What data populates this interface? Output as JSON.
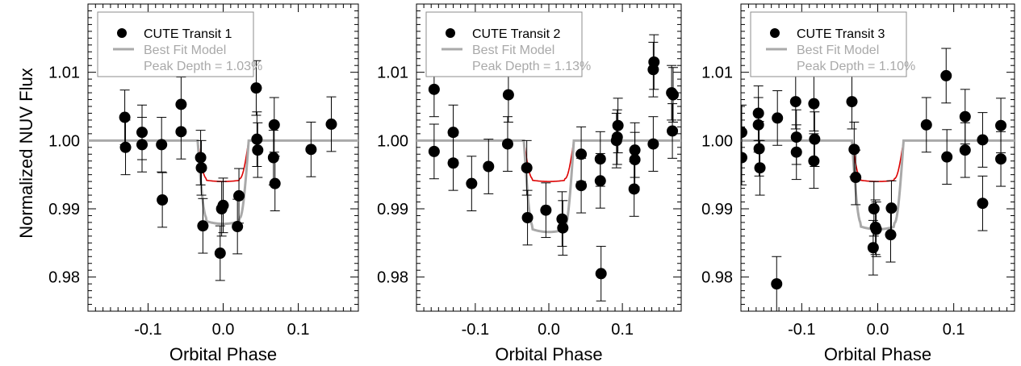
{
  "figure": {
    "ylabel": "Normalized NUV Flux",
    "xlabel": "Orbital Phase"
  },
  "colors": {
    "data": "#000000",
    "model": "#a9a9a9",
    "limb_model": "#dd0000",
    "legend_border": "#8c8c8c"
  },
  "chart_data": [
    {
      "type": "scatter",
      "legend": [
        "CUTE Transit 1",
        "Best Fit Model",
        "Peak Depth = 1.03%"
      ],
      "xlabel": "Orbital Phase",
      "ylabel": "Normalized NUV Flux",
      "xlim": [
        -0.18,
        0.18
      ],
      "ylim": [
        0.975,
        1.02
      ],
      "xticks": [
        "-0.1",
        "0.0",
        "0.1"
      ],
      "yticks": [
        "1.01",
        "1.00",
        "0.99",
        "0.98"
      ],
      "model_depth": 0.0122,
      "limb_depth": 0.006,
      "points": [
        {
          "x": -0.131,
          "y": 1.0034,
          "err": 0.004
        },
        {
          "x": -0.13,
          "y": 0.999,
          "err": 0.004
        },
        {
          "x": -0.108,
          "y": 1.0012,
          "err": 0.004
        },
        {
          "x": -0.108,
          "y": 0.9994,
          "err": 0.004
        },
        {
          "x": -0.082,
          "y": 0.9994,
          "err": 0.004
        },
        {
          "x": -0.081,
          "y": 0.9913,
          "err": 0.004
        },
        {
          "x": -0.056,
          "y": 1.0053,
          "err": 0.004
        },
        {
          "x": -0.056,
          "y": 1.0013,
          "err": 0.004
        },
        {
          "x": -0.03,
          "y": 0.9975,
          "err": 0.004
        },
        {
          "x": -0.029,
          "y": 0.996,
          "err": 0.004
        },
        {
          "x": -0.027,
          "y": 0.9875,
          "err": 0.004
        },
        {
          "x": -0.004,
          "y": 0.9835,
          "err": 0.004
        },
        {
          "x": -0.002,
          "y": 0.99,
          "err": 0.004
        },
        {
          "x": 0.0,
          "y": 0.9905,
          "err": 0.004
        },
        {
          "x": 0.019,
          "y": 0.9874,
          "err": 0.004
        },
        {
          "x": 0.021,
          "y": 0.9919,
          "err": 0.004
        },
        {
          "x": 0.044,
          "y": 1.0077,
          "err": 0.004
        },
        {
          "x": 0.045,
          "y": 1.0002,
          "err": 0.004
        },
        {
          "x": 0.046,
          "y": 0.9986,
          "err": 0.004
        },
        {
          "x": 0.068,
          "y": 1.0023,
          "err": 0.004
        },
        {
          "x": 0.067,
          "y": 0.9975,
          "err": 0.004
        },
        {
          "x": 0.069,
          "y": 0.9937,
          "err": 0.004
        },
        {
          "x": 0.117,
          "y": 0.9987,
          "err": 0.004
        },
        {
          "x": 0.144,
          "y": 1.0024,
          "err": 0.004
        }
      ]
    },
    {
      "type": "scatter",
      "legend": [
        "CUTE Transit 2",
        "Best Fit Model",
        "Peak Depth = 1.13%"
      ],
      "xlabel": "Orbital Phase",
      "ylabel": "",
      "xlim": [
        -0.18,
        0.18
      ],
      "ylim": [
        0.975,
        1.02
      ],
      "xticks": [
        "-0.1",
        "0.0",
        "0.1"
      ],
      "yticks": [
        "1.01",
        "1.00",
        "0.99",
        "0.98"
      ],
      "model_depth": 0.0134,
      "limb_depth": 0.006,
      "points": [
        {
          "x": -0.156,
          "y": 1.0075,
          "err": 0.004
        },
        {
          "x": -0.156,
          "y": 0.9984,
          "err": 0.004
        },
        {
          "x": -0.13,
          "y": 1.0012,
          "err": 0.004
        },
        {
          "x": -0.13,
          "y": 0.9967,
          "err": 0.004
        },
        {
          "x": -0.105,
          "y": 0.9937,
          "err": 0.004
        },
        {
          "x": -0.082,
          "y": 0.9962,
          "err": 0.004
        },
        {
          "x": -0.055,
          "y": 1.0067,
          "err": 0.004
        },
        {
          "x": -0.056,
          "y": 0.9995,
          "err": 0.004
        },
        {
          "x": -0.03,
          "y": 0.996,
          "err": 0.004
        },
        {
          "x": -0.029,
          "y": 0.9887,
          "err": 0.004
        },
        {
          "x": -0.004,
          "y": 0.9898,
          "err": 0.004
        },
        {
          "x": 0.018,
          "y": 0.9885,
          "err": 0.004
        },
        {
          "x": 0.019,
          "y": 0.9872,
          "err": 0.004
        },
        {
          "x": 0.044,
          "y": 0.998,
          "err": 0.004
        },
        {
          "x": 0.044,
          "y": 0.9934,
          "err": 0.004
        },
        {
          "x": 0.07,
          "y": 0.9973,
          "err": 0.004
        },
        {
          "x": 0.07,
          "y": 0.9941,
          "err": 0.004
        },
        {
          "x": 0.071,
          "y": 0.9805,
          "err": 0.004
        },
        {
          "x": 0.094,
          "y": 1.0022,
          "err": 0.004
        },
        {
          "x": 0.093,
          "y": 1.0005,
          "err": 0.004
        },
        {
          "x": 0.092,
          "y": 1.0,
          "err": 0.004
        },
        {
          "x": 0.117,
          "y": 0.9986,
          "err": 0.004
        },
        {
          "x": 0.117,
          "y": 0.9972,
          "err": 0.004
        },
        {
          "x": 0.116,
          "y": 0.9929,
          "err": 0.004
        },
        {
          "x": 0.143,
          "y": 1.0115,
          "err": 0.004
        },
        {
          "x": 0.142,
          "y": 1.0104,
          "err": 0.004
        },
        {
          "x": 0.142,
          "y": 0.9995,
          "err": 0.004
        },
        {
          "x": 0.167,
          "y": 1.007,
          "err": 0.004
        },
        {
          "x": 0.169,
          "y": 1.0067,
          "err": 0.004
        },
        {
          "x": 0.168,
          "y": 1.0014,
          "err": 0.004
        }
      ]
    },
    {
      "type": "scatter",
      "legend": [
        "CUTE Transit 3",
        "Best Fit Model",
        "Peak Depth = 1.10%"
      ],
      "xlabel": "Orbital Phase",
      "ylabel": "",
      "xlim": [
        -0.18,
        0.18
      ],
      "ylim": [
        0.975,
        1.02
      ],
      "xticks": [
        "-0.1",
        "0.0",
        "0.1"
      ],
      "yticks": [
        "1.01",
        "1.00",
        "0.99",
        "0.98"
      ],
      "model_depth": 0.013,
      "limb_depth": 0.006,
      "points": [
        {
          "x": -0.179,
          "y": 1.0012,
          "err": 0.004
        },
        {
          "x": -0.179,
          "y": 0.9975,
          "err": 0.004
        },
        {
          "x": -0.157,
          "y": 1.004,
          "err": 0.004
        },
        {
          "x": -0.157,
          "y": 1.0023,
          "err": 0.004
        },
        {
          "x": -0.156,
          "y": 0.9988,
          "err": 0.004
        },
        {
          "x": -0.155,
          "y": 0.996,
          "err": 0.004
        },
        {
          "x": -0.132,
          "y": 1.0033,
          "err": 0.004
        },
        {
          "x": -0.133,
          "y": 0.979,
          "err": 0.004
        },
        {
          "x": -0.108,
          "y": 1.0057,
          "err": 0.004
        },
        {
          "x": -0.107,
          "y": 1.0005,
          "err": 0.004
        },
        {
          "x": -0.107,
          "y": 0.9983,
          "err": 0.004
        },
        {
          "x": -0.084,
          "y": 1.0054,
          "err": 0.004
        },
        {
          "x": -0.083,
          "y": 1.0002,
          "err": 0.004
        },
        {
          "x": -0.084,
          "y": 0.997,
          "err": 0.004
        },
        {
          "x": -0.034,
          "y": 1.0057,
          "err": 0.004
        },
        {
          "x": -0.031,
          "y": 0.9987,
          "err": 0.004
        },
        {
          "x": -0.029,
          "y": 0.9946,
          "err": 0.004
        },
        {
          "x": -0.005,
          "y": 0.99,
          "err": 0.004
        },
        {
          "x": -0.003,
          "y": 0.9873,
          "err": 0.004
        },
        {
          "x": -0.002,
          "y": 0.987,
          "err": 0.004
        },
        {
          "x": -0.006,
          "y": 0.9843,
          "err": 0.004
        },
        {
          "x": 0.018,
          "y": 0.9901,
          "err": 0.004
        },
        {
          "x": 0.017,
          "y": 0.9862,
          "err": 0.004
        },
        {
          "x": 0.064,
          "y": 1.0023,
          "err": 0.004
        },
        {
          "x": 0.09,
          "y": 1.0095,
          "err": 0.004
        },
        {
          "x": 0.091,
          "y": 0.9976,
          "err": 0.004
        },
        {
          "x": 0.115,
          "y": 1.0035,
          "err": 0.004
        },
        {
          "x": 0.115,
          "y": 0.9986,
          "err": 0.004
        },
        {
          "x": 0.138,
          "y": 1.0001,
          "err": 0.004
        },
        {
          "x": 0.138,
          "y": 0.9908,
          "err": 0.004
        },
        {
          "x": 0.162,
          "y": 1.0022,
          "err": 0.004
        },
        {
          "x": 0.162,
          "y": 0.9973,
          "err": 0.004
        }
      ]
    }
  ]
}
